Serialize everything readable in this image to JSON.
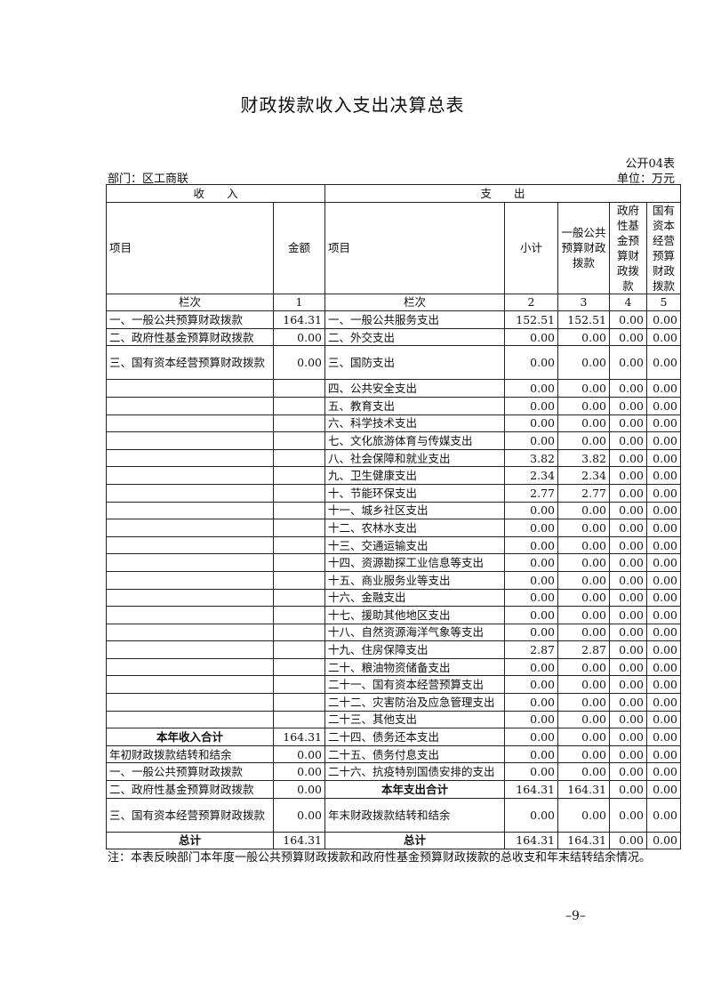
{
  "title": "财政拨款收入支出决算总表",
  "form_no": "公开04表",
  "department": "部门：区工商联",
  "unit": "单位：万元",
  "header": {
    "income": "收　　入",
    "expense": "支　　出",
    "col_item": "项目",
    "col_amount": "金额",
    "col_item2": "项目",
    "col_subtotal": "小计",
    "col_general": "一般公共预算财政拨款",
    "col_fund": "政府性基金预算财政拨款",
    "col_state": "国有资本经营预算财政拨款",
    "lanci": "栏次",
    "idx": [
      "1",
      "2",
      "3",
      "4",
      "5"
    ]
  },
  "rows": [
    [
      "一、一般公共预算财政拨款",
      "164.31",
      "一、一般公共服务支出",
      "152.51",
      "152.51",
      "0.00",
      "0.00"
    ],
    [
      "二、政府性基金预算财政拨款",
      "0.00",
      "二、外交支出",
      "0.00",
      "0.00",
      "0.00",
      "0.00"
    ],
    [
      "三、国有资本经营预算财政拨款",
      "0.00",
      "三、国防支出",
      "0.00",
      "0.00",
      "0.00",
      "0.00"
    ],
    [
      "",
      "",
      "四、公共安全支出",
      "0.00",
      "0.00",
      "0.00",
      "0.00"
    ],
    [
      "",
      "",
      "五、教育支出",
      "0.00",
      "0.00",
      "0.00",
      "0.00"
    ],
    [
      "",
      "",
      "六、科学技术支出",
      "0.00",
      "0.00",
      "0.00",
      "0.00"
    ],
    [
      "",
      "",
      "七、文化旅游体育与传媒支出",
      "0.00",
      "0.00",
      "0.00",
      "0.00"
    ],
    [
      "",
      "",
      "八、社会保障和就业支出",
      "3.82",
      "3.82",
      "0.00",
      "0.00"
    ],
    [
      "",
      "",
      "九、卫生健康支出",
      "2.34",
      "2.34",
      "0.00",
      "0.00"
    ],
    [
      "",
      "",
      "十、节能环保支出",
      "2.77",
      "2.77",
      "0.00",
      "0.00"
    ],
    [
      "",
      "",
      "十一、城乡社区支出",
      "0.00",
      "0.00",
      "0.00",
      "0.00"
    ],
    [
      "",
      "",
      "十二、农林水支出",
      "0.00",
      "0.00",
      "0.00",
      "0.00"
    ],
    [
      "",
      "",
      "十三、交通运输支出",
      "0.00",
      "0.00",
      "0.00",
      "0.00"
    ],
    [
      "",
      "",
      "十四、资源勘探工业信息等支出",
      "0.00",
      "0.00",
      "0.00",
      "0.00"
    ],
    [
      "",
      "",
      "十五、商业服务业等支出",
      "0.00",
      "0.00",
      "0.00",
      "0.00"
    ],
    [
      "",
      "",
      "十六、金融支出",
      "0.00",
      "0.00",
      "0.00",
      "0.00"
    ],
    [
      "",
      "",
      "十七、援助其他地区支出",
      "0.00",
      "0.00",
      "0.00",
      "0.00"
    ],
    [
      "",
      "",
      "十八、自然资源海洋气象等支出",
      "0.00",
      "0.00",
      "0.00",
      "0.00"
    ],
    [
      "",
      "",
      "十九、住房保障支出",
      "2.87",
      "2.87",
      "0.00",
      "0.00"
    ],
    [
      "",
      "",
      "二十、粮油物资储备支出",
      "0.00",
      "0.00",
      "0.00",
      "0.00"
    ],
    [
      "",
      "",
      "二十一、国有资本经营预算支出",
      "0.00",
      "0.00",
      "0.00",
      "0.00"
    ],
    [
      "",
      "",
      "二十二、灾害防治及应急管理支出",
      "0.00",
      "0.00",
      "0.00",
      "0.00"
    ],
    [
      "",
      "",
      "二十三、其他支出",
      "0.00",
      "0.00",
      "0.00",
      "0.00"
    ],
    [
      "本年收入合计",
      "164.31",
      "二十四、债务还本支出",
      "0.00",
      "0.00",
      "0.00",
      "0.00"
    ],
    [
      "年初财政拨款结转和结余",
      "0.00",
      "二十五、债务付息支出",
      "0.00",
      "0.00",
      "0.00",
      "0.00"
    ],
    [
      "一、一般公共预算财政拨款",
      "0.00",
      "二十六、抗疫特别国债安排的支出",
      "0.00",
      "0.00",
      "0.00",
      "0.00"
    ],
    [
      "二、政府性基金预算财政拨款",
      "0.00",
      "本年支出合计",
      "164.31",
      "164.31",
      "0.00",
      "0.00"
    ],
    [
      "三、国有资本经营预算财政拨款",
      "0.00",
      "年末财政拨款结转和结余",
      "0.00",
      "0.00",
      "0.00",
      "0.00"
    ],
    [
      "总计",
      "164.31",
      "总计",
      "164.31",
      "164.31",
      "0.00",
      "0.00"
    ]
  ],
  "note": "注：本表反映部门本年度一般公共预算财政拨款和政府性基金预算财政拨款的总收支和年末结转结余情况。",
  "page_number": "–9–"
}
